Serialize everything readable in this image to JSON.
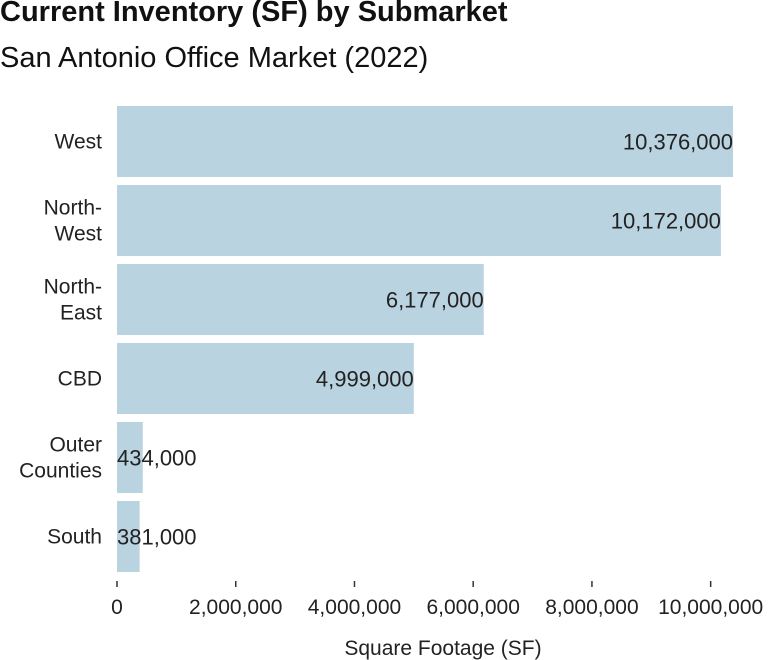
{
  "chart_data": {
    "type": "bar",
    "orientation": "horizontal",
    "title": "Current Inventory (SF) by Submarket",
    "subtitle": "San Antonio Office Market (2022)",
    "xlabel": "Square Footage (SF)",
    "ylabel": "",
    "categories": [
      [
        "West"
      ],
      [
        "North-",
        "West"
      ],
      [
        "North-",
        "East"
      ],
      [
        "CBD"
      ],
      [
        "Outer",
        "Counties"
      ],
      [
        "South"
      ]
    ],
    "values": [
      10376000,
      10172000,
      6177000,
      4999000,
      434000,
      381000
    ],
    "value_labels": [
      "10,376,000",
      "10,172,000",
      "6,177,000",
      "4,999,000",
      "434,000",
      "381,000"
    ],
    "xlim": [
      0,
      10376000
    ],
    "xticks": [
      0,
      2000000,
      4000000,
      6000000,
      8000000,
      10000000
    ],
    "xtick_labels": [
      "0",
      "2,000,000",
      "4,000,000",
      "6,000,000",
      "8,000,000",
      "10,000,000"
    ],
    "bar_color": "#b9d3e0",
    "grid": false,
    "legend": "none"
  }
}
